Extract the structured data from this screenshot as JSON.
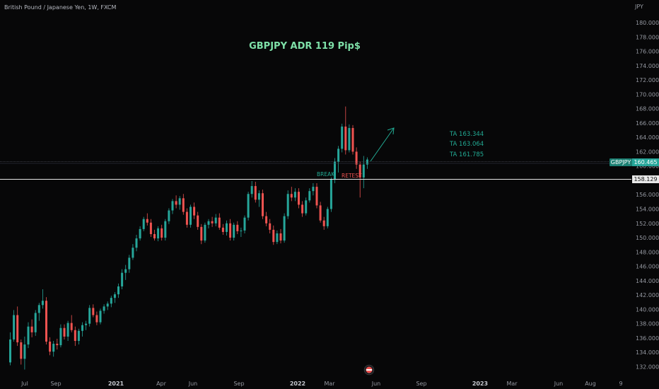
{
  "header": {
    "symbol_title": "British Pound / Japanese Yen, 1W, FXCM"
  },
  "price_axis": {
    "currency": "JPY",
    "ticks": [
      "180.000",
      "178.000",
      "176.000",
      "174.000",
      "172.000",
      "170.000",
      "168.000",
      "166.000",
      "164.000",
      "162.000",
      "160.000",
      "158.000",
      "156.000",
      "154.000",
      "152.000",
      "150.000",
      "148.000",
      "146.000",
      "144.000",
      "142.000",
      "140.000",
      "138.000",
      "136.000",
      "134.000",
      "132.000"
    ]
  },
  "time_axis": {
    "labels": [
      {
        "text": "Jul",
        "year": false
      },
      {
        "text": "Sep",
        "year": false
      },
      {
        "text": "2021",
        "year": true
      },
      {
        "text": "Apr",
        "year": false
      },
      {
        "text": "Jun",
        "year": false
      },
      {
        "text": "Sep",
        "year": false
      },
      {
        "text": "2022",
        "year": true
      },
      {
        "text": "Mar",
        "year": false
      },
      {
        "text": "Jun",
        "year": false
      },
      {
        "text": "Sep",
        "year": false
      },
      {
        "text": "2023",
        "year": true
      },
      {
        "text": "Mar",
        "year": false
      },
      {
        "text": "Jun",
        "year": false
      },
      {
        "text": "Aug",
        "year": false
      },
      {
        "text": "9",
        "year": false
      }
    ]
  },
  "annotations": {
    "title": "GBPJPY ADR 119 Pip$",
    "targets": [
      "TA 163.344",
      "TA 163.064",
      "TA 161.785"
    ],
    "break_label": "BREAK",
    "retest_label": "RETEST"
  },
  "price_tags": {
    "symbol": "GBPJPY",
    "last_price": "160.465",
    "level_price": "158.129"
  },
  "colors": {
    "background": "#070708",
    "bull": "#26a69a",
    "bear": "#ef5350",
    "title": "#7ee0a8",
    "annotation": "#22ab94",
    "level_line": "#e6e6e6"
  },
  "chart_data": {
    "type": "candlestick",
    "timeframe": "1W",
    "ylim": [
      131,
      182
    ],
    "grid": false,
    "horizontal_levels": [
      158.129,
      160.465
    ],
    "candles": [
      {
        "o": 132.6,
        "h": 136.8,
        "l": 132.2,
        "c": 135.8
      },
      {
        "o": 135.8,
        "h": 139.9,
        "l": 135.5,
        "c": 139.2
      },
      {
        "o": 139.2,
        "h": 140.4,
        "l": 134.9,
        "c": 135.4
      },
      {
        "o": 135.4,
        "h": 135.8,
        "l": 132.3,
        "c": 133.1
      },
      {
        "o": 133.1,
        "h": 136.2,
        "l": 131.6,
        "c": 135.1
      },
      {
        "o": 135.1,
        "h": 138.2,
        "l": 134.6,
        "c": 137.6
      },
      {
        "o": 137.6,
        "h": 138.6,
        "l": 136.1,
        "c": 136.8
      },
      {
        "o": 136.8,
        "h": 139.9,
        "l": 136.3,
        "c": 139.5
      },
      {
        "o": 139.5,
        "h": 140.9,
        "l": 138.4,
        "c": 140.6
      },
      {
        "o": 140.6,
        "h": 142.8,
        "l": 140.1,
        "c": 141.2
      },
      {
        "o": 141.2,
        "h": 141.7,
        "l": 135.1,
        "c": 135.5
      },
      {
        "o": 135.5,
        "h": 136.1,
        "l": 133.6,
        "c": 134.1
      },
      {
        "o": 134.1,
        "h": 135.6,
        "l": 133.4,
        "c": 135.2
      },
      {
        "o": 135.2,
        "h": 135.9,
        "l": 134.4,
        "c": 135.0
      },
      {
        "o": 135.0,
        "h": 137.9,
        "l": 134.7,
        "c": 137.4
      },
      {
        "o": 137.4,
        "h": 137.9,
        "l": 135.8,
        "c": 136.2
      },
      {
        "o": 136.2,
        "h": 138.4,
        "l": 135.6,
        "c": 138.1
      },
      {
        "o": 138.1,
        "h": 139.2,
        "l": 136.8,
        "c": 137.1
      },
      {
        "o": 137.1,
        "h": 137.6,
        "l": 134.9,
        "c": 135.6
      },
      {
        "o": 135.6,
        "h": 137.3,
        "l": 135.1,
        "c": 137.0
      },
      {
        "o": 137.0,
        "h": 138.2,
        "l": 136.2,
        "c": 137.8
      },
      {
        "o": 137.8,
        "h": 138.4,
        "l": 137.1,
        "c": 138.0
      },
      {
        "o": 138.0,
        "h": 140.6,
        "l": 137.6,
        "c": 140.2
      },
      {
        "o": 140.2,
        "h": 140.7,
        "l": 138.9,
        "c": 139.2
      },
      {
        "o": 139.2,
        "h": 139.7,
        "l": 137.8,
        "c": 138.2
      },
      {
        "o": 138.2,
        "h": 140.1,
        "l": 137.9,
        "c": 139.8
      },
      {
        "o": 139.8,
        "h": 140.7,
        "l": 139.4,
        "c": 140.4
      },
      {
        "o": 140.4,
        "h": 141.1,
        "l": 139.9,
        "c": 140.8
      },
      {
        "o": 140.8,
        "h": 141.9,
        "l": 140.3,
        "c": 141.6
      },
      {
        "o": 141.6,
        "h": 142.4,
        "l": 140.9,
        "c": 142.1
      },
      {
        "o": 142.1,
        "h": 143.6,
        "l": 141.6,
        "c": 143.2
      },
      {
        "o": 143.2,
        "h": 145.6,
        "l": 142.8,
        "c": 145.1
      },
      {
        "o": 145.1,
        "h": 146.2,
        "l": 144.1,
        "c": 145.6
      },
      {
        "o": 145.6,
        "h": 147.6,
        "l": 145.1,
        "c": 147.2
      },
      {
        "o": 147.2,
        "h": 149.1,
        "l": 146.9,
        "c": 148.6
      },
      {
        "o": 148.6,
        "h": 150.4,
        "l": 148.1,
        "c": 149.9
      },
      {
        "o": 149.9,
        "h": 151.6,
        "l": 149.6,
        "c": 151.2
      },
      {
        "o": 151.2,
        "h": 152.9,
        "l": 150.9,
        "c": 152.6
      },
      {
        "o": 152.6,
        "h": 153.4,
        "l": 151.7,
        "c": 152.1
      },
      {
        "o": 152.1,
        "h": 152.6,
        "l": 150.1,
        "c": 150.5
      },
      {
        "o": 150.5,
        "h": 151.1,
        "l": 149.6,
        "c": 149.9
      },
      {
        "o": 149.9,
        "h": 151.6,
        "l": 149.5,
        "c": 151.3
      },
      {
        "o": 151.3,
        "h": 151.8,
        "l": 149.6,
        "c": 150.0
      },
      {
        "o": 150.0,
        "h": 152.6,
        "l": 149.6,
        "c": 152.3
      },
      {
        "o": 152.3,
        "h": 154.1,
        "l": 151.9,
        "c": 153.8
      },
      {
        "o": 153.8,
        "h": 155.4,
        "l": 153.3,
        "c": 155.1
      },
      {
        "o": 155.1,
        "h": 155.9,
        "l": 154.1,
        "c": 154.6
      },
      {
        "o": 154.6,
        "h": 155.8,
        "l": 153.9,
        "c": 155.5
      },
      {
        "o": 155.5,
        "h": 156.1,
        "l": 153.2,
        "c": 153.6
      },
      {
        "o": 153.6,
        "h": 154.1,
        "l": 151.4,
        "c": 151.8
      },
      {
        "o": 151.8,
        "h": 154.6,
        "l": 151.4,
        "c": 154.3
      },
      {
        "o": 154.3,
        "h": 154.9,
        "l": 152.6,
        "c": 153.1
      },
      {
        "o": 153.1,
        "h": 153.6,
        "l": 151.1,
        "c": 151.5
      },
      {
        "o": 151.5,
        "h": 151.9,
        "l": 149.1,
        "c": 149.6
      },
      {
        "o": 149.6,
        "h": 152.1,
        "l": 149.3,
        "c": 151.8
      },
      {
        "o": 151.8,
        "h": 152.6,
        "l": 151.3,
        "c": 152.3
      },
      {
        "o": 152.3,
        "h": 152.9,
        "l": 151.5,
        "c": 152.0
      },
      {
        "o": 152.0,
        "h": 153.3,
        "l": 151.6,
        "c": 152.8
      },
      {
        "o": 152.8,
        "h": 153.4,
        "l": 151.1,
        "c": 151.4
      },
      {
        "o": 151.4,
        "h": 151.9,
        "l": 150.4,
        "c": 150.8
      },
      {
        "o": 150.8,
        "h": 152.4,
        "l": 150.3,
        "c": 152.0
      },
      {
        "o": 152.0,
        "h": 152.6,
        "l": 149.6,
        "c": 150.0
      },
      {
        "o": 150.0,
        "h": 152.1,
        "l": 149.6,
        "c": 151.8
      },
      {
        "o": 151.8,
        "h": 152.3,
        "l": 150.5,
        "c": 150.9
      },
      {
        "o": 150.9,
        "h": 151.4,
        "l": 150.1,
        "c": 151.0
      },
      {
        "o": 151.0,
        "h": 153.1,
        "l": 150.6,
        "c": 152.8
      },
      {
        "o": 152.8,
        "h": 156.4,
        "l": 152.4,
        "c": 156.1
      },
      {
        "o": 156.1,
        "h": 157.9,
        "l": 155.6,
        "c": 157.2
      },
      {
        "o": 157.2,
        "h": 157.8,
        "l": 154.9,
        "c": 155.3
      },
      {
        "o": 155.3,
        "h": 156.6,
        "l": 154.3,
        "c": 156.2
      },
      {
        "o": 156.2,
        "h": 156.7,
        "l": 152.6,
        "c": 153.0
      },
      {
        "o": 153.0,
        "h": 153.6,
        "l": 151.6,
        "c": 152.0
      },
      {
        "o": 152.0,
        "h": 152.6,
        "l": 150.6,
        "c": 151.1
      },
      {
        "o": 151.1,
        "h": 151.7,
        "l": 149.0,
        "c": 149.4
      },
      {
        "o": 149.4,
        "h": 151.0,
        "l": 149.1,
        "c": 150.6
      },
      {
        "o": 150.6,
        "h": 151.2,
        "l": 149.2,
        "c": 149.6
      },
      {
        "o": 149.6,
        "h": 153.4,
        "l": 149.3,
        "c": 153.0
      },
      {
        "o": 153.0,
        "h": 156.6,
        "l": 152.6,
        "c": 156.1
      },
      {
        "o": 156.1,
        "h": 157.1,
        "l": 155.1,
        "c": 155.6
      },
      {
        "o": 155.6,
        "h": 156.9,
        "l": 155.1,
        "c": 156.4
      },
      {
        "o": 156.4,
        "h": 156.9,
        "l": 154.1,
        "c": 154.6
      },
      {
        "o": 154.6,
        "h": 155.1,
        "l": 152.9,
        "c": 153.4
      },
      {
        "o": 153.4,
        "h": 155.6,
        "l": 153.1,
        "c": 155.2
      },
      {
        "o": 155.2,
        "h": 156.9,
        "l": 154.9,
        "c": 156.5
      },
      {
        "o": 156.5,
        "h": 157.6,
        "l": 155.9,
        "c": 157.1
      },
      {
        "o": 157.1,
        "h": 157.6,
        "l": 154.1,
        "c": 154.5
      },
      {
        "o": 154.5,
        "h": 155.0,
        "l": 152.1,
        "c": 152.4
      },
      {
        "o": 152.4,
        "h": 152.9,
        "l": 151.1,
        "c": 151.6
      },
      {
        "o": 151.6,
        "h": 154.3,
        "l": 151.3,
        "c": 154.0
      },
      {
        "o": 154.0,
        "h": 158.4,
        "l": 153.6,
        "c": 158.1
      },
      {
        "o": 158.1,
        "h": 161.1,
        "l": 157.6,
        "c": 160.6
      },
      {
        "o": 160.6,
        "h": 162.8,
        "l": 159.1,
        "c": 162.4
      },
      {
        "o": 162.4,
        "h": 165.9,
        "l": 161.9,
        "c": 165.5
      },
      {
        "o": 165.5,
        "h": 168.3,
        "l": 161.6,
        "c": 162.2
      },
      {
        "o": 162.2,
        "h": 165.8,
        "l": 161.9,
        "c": 165.3
      },
      {
        "o": 165.3,
        "h": 165.7,
        "l": 161.6,
        "c": 162.0
      },
      {
        "o": 162.0,
        "h": 162.6,
        "l": 159.6,
        "c": 160.2
      },
      {
        "o": 160.2,
        "h": 160.6,
        "l": 155.6,
        "c": 158.4
      },
      {
        "o": 158.4,
        "h": 161.4,
        "l": 156.9,
        "c": 160.2
      },
      {
        "o": 160.2,
        "h": 161.2,
        "l": 159.6,
        "c": 160.9
      }
    ]
  }
}
